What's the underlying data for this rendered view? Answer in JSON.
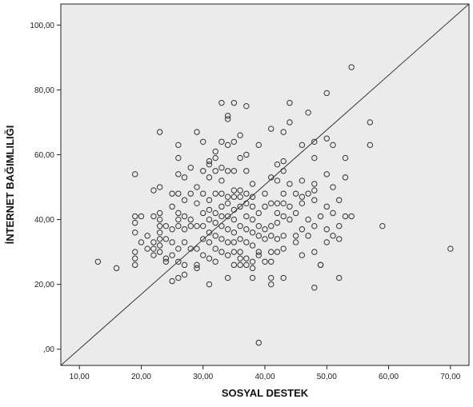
{
  "chart_data": {
    "type": "scatter",
    "xlabel": "SOSYAL DESTEK",
    "ylabel": "İNTERNET BAĞIMLILIĞI",
    "xlim": [
      7,
      73
    ],
    "ylim": [
      -5,
      106.5
    ],
    "x_ticks": [
      10,
      20,
      30,
      40,
      50,
      60,
      70
    ],
    "x_tick_labels": [
      "10,00",
      "20,00",
      "30,00",
      "40,00",
      "50,00",
      "60,00",
      "70,00"
    ],
    "y_ticks": [
      0,
      20,
      40,
      60,
      80,
      100
    ],
    "y_tick_labels": [
      ",00",
      "20,00",
      "40,00",
      "60,00",
      "80,00",
      "100,00"
    ],
    "reference_line": {
      "from": [
        7,
        -5
      ],
      "to": [
        73,
        106.5
      ]
    },
    "grid": false,
    "plot_background": "#ebebeb",
    "marker_color": "#333333",
    "line_color": "#333333",
    "points": [
      [
        13,
        27
      ],
      [
        16,
        25
      ],
      [
        19,
        54
      ],
      [
        19,
        41
      ],
      [
        19,
        39
      ],
      [
        19,
        36
      ],
      [
        19,
        30
      ],
      [
        19,
        28
      ],
      [
        19,
        26
      ],
      [
        20,
        41
      ],
      [
        20,
        33
      ],
      [
        21,
        35
      ],
      [
        21,
        31
      ],
      [
        22,
        49
      ],
      [
        22,
        41
      ],
      [
        22,
        33
      ],
      [
        22,
        31
      ],
      [
        22,
        29
      ],
      [
        23,
        67
      ],
      [
        23,
        50
      ],
      [
        23,
        42
      ],
      [
        23,
        40
      ],
      [
        23,
        38
      ],
      [
        23,
        36
      ],
      [
        23,
        34
      ],
      [
        23,
        32
      ],
      [
        23,
        30
      ],
      [
        24,
        38
      ],
      [
        24,
        34
      ],
      [
        24,
        28
      ],
      [
        24,
        27
      ],
      [
        25,
        48
      ],
      [
        25,
        44
      ],
      [
        25,
        37
      ],
      [
        25,
        33
      ],
      [
        25,
        29
      ],
      [
        25,
        21
      ],
      [
        26,
        63
      ],
      [
        26,
        59
      ],
      [
        26,
        54
      ],
      [
        26,
        48
      ],
      [
        26,
        42
      ],
      [
        26,
        40
      ],
      [
        26,
        38
      ],
      [
        26,
        31
      ],
      [
        26,
        27
      ],
      [
        26,
        22
      ],
      [
        27,
        53
      ],
      [
        27,
        46
      ],
      [
        27,
        41
      ],
      [
        27,
        37
      ],
      [
        27,
        33
      ],
      [
        27,
        26
      ],
      [
        27,
        23
      ],
      [
        28,
        56
      ],
      [
        28,
        48
      ],
      [
        28,
        40
      ],
      [
        28,
        38
      ],
      [
        28,
        31
      ],
      [
        29,
        67
      ],
      [
        29,
        50
      ],
      [
        29,
        45
      ],
      [
        29,
        38
      ],
      [
        29,
        31
      ],
      [
        29,
        26
      ],
      [
        29,
        25
      ],
      [
        30,
        64
      ],
      [
        30,
        55
      ],
      [
        30,
        48
      ],
      [
        30,
        42
      ],
      [
        30,
        38
      ],
      [
        30,
        34
      ],
      [
        30,
        29
      ],
      [
        31,
        58
      ],
      [
        31,
        57
      ],
      [
        31,
        53
      ],
      [
        31,
        46
      ],
      [
        31,
        43
      ],
      [
        31,
        40
      ],
      [
        31,
        36
      ],
      [
        31,
        33
      ],
      [
        31,
        28
      ],
      [
        31,
        20
      ],
      [
        32,
        61
      ],
      [
        32,
        59
      ],
      [
        32,
        55
      ],
      [
        32,
        48
      ],
      [
        32,
        42
      ],
      [
        32,
        39
      ],
      [
        32,
        35
      ],
      [
        32,
        31
      ],
      [
        32,
        27
      ],
      [
        33,
        76
      ],
      [
        33,
        64
      ],
      [
        33,
        56
      ],
      [
        33,
        52
      ],
      [
        33,
        48
      ],
      [
        33,
        44
      ],
      [
        33,
        41
      ],
      [
        33,
        38
      ],
      [
        33,
        34
      ],
      [
        33,
        30
      ],
      [
        34,
        72
      ],
      [
        34,
        71
      ],
      [
        34,
        63
      ],
      [
        34,
        55
      ],
      [
        34,
        47
      ],
      [
        34,
        45
      ],
      [
        34,
        41
      ],
      [
        34,
        37
      ],
      [
        34,
        33
      ],
      [
        34,
        29
      ],
      [
        34,
        22
      ],
      [
        35,
        76
      ],
      [
        35,
        64
      ],
      [
        35,
        55
      ],
      [
        35,
        49
      ],
      [
        35,
        47
      ],
      [
        35,
        43
      ],
      [
        35,
        40
      ],
      [
        35,
        36
      ],
      [
        35,
        33
      ],
      [
        35,
        30
      ],
      [
        35,
        26
      ],
      [
        36,
        66
      ],
      [
        36,
        59
      ],
      [
        36,
        49
      ],
      [
        36,
        47
      ],
      [
        36,
        44
      ],
      [
        36,
        38
      ],
      [
        36,
        34
      ],
      [
        36,
        30
      ],
      [
        36,
        28
      ],
      [
        36,
        26
      ],
      [
        37,
        75
      ],
      [
        37,
        60
      ],
      [
        37,
        55
      ],
      [
        37,
        48
      ],
      [
        37,
        45
      ],
      [
        37,
        41
      ],
      [
        37,
        37
      ],
      [
        37,
        33
      ],
      [
        37,
        28
      ],
      [
        37,
        26
      ],
      [
        38,
        51
      ],
      [
        38,
        47
      ],
      [
        38,
        44
      ],
      [
        38,
        40
      ],
      [
        38,
        36
      ],
      [
        38,
        32
      ],
      [
        38,
        27
      ],
      [
        38,
        25
      ],
      [
        38,
        22
      ],
      [
        39,
        63
      ],
      [
        39,
        42
      ],
      [
        39,
        38
      ],
      [
        39,
        35
      ],
      [
        39,
        30
      ],
      [
        39,
        29
      ],
      [
        39,
        2
      ],
      [
        40,
        48
      ],
      [
        40,
        44
      ],
      [
        40,
        37
      ],
      [
        40,
        34
      ],
      [
        40,
        27
      ],
      [
        41,
        68
      ],
      [
        41,
        53
      ],
      [
        41,
        45
      ],
      [
        41,
        38
      ],
      [
        41,
        35
      ],
      [
        41,
        30
      ],
      [
        41,
        27
      ],
      [
        41,
        22
      ],
      [
        41,
        20
      ],
      [
        42,
        57
      ],
      [
        42,
        52
      ],
      [
        42,
        45
      ],
      [
        42,
        42
      ],
      [
        42,
        39
      ],
      [
        42,
        34
      ],
      [
        42,
        30
      ],
      [
        43,
        67
      ],
      [
        43,
        58
      ],
      [
        43,
        55
      ],
      [
        43,
        48
      ],
      [
        43,
        45
      ],
      [
        43,
        41
      ],
      [
        43,
        35
      ],
      [
        43,
        31
      ],
      [
        43,
        22
      ],
      [
        44,
        76
      ],
      [
        44,
        70
      ],
      [
        44,
        51
      ],
      [
        44,
        44
      ],
      [
        44,
        40
      ],
      [
        45,
        48
      ],
      [
        45,
        42
      ],
      [
        45,
        35
      ],
      [
        45,
        33
      ],
      [
        46,
        63
      ],
      [
        46,
        52
      ],
      [
        46,
        47
      ],
      [
        46,
        45
      ],
      [
        46,
        37
      ],
      [
        46,
        29
      ],
      [
        47,
        73
      ],
      [
        47,
        48
      ],
      [
        47,
        40
      ],
      [
        47,
        35
      ],
      [
        48,
        64
      ],
      [
        48,
        59
      ],
      [
        48,
        51
      ],
      [
        48,
        49
      ],
      [
        48,
        46
      ],
      [
        48,
        38
      ],
      [
        48,
        30
      ],
      [
        48,
        19
      ],
      [
        49,
        26
      ],
      [
        49,
        41
      ],
      [
        49,
        26
      ],
      [
        50,
        79
      ],
      [
        50,
        65
      ],
      [
        50,
        54
      ],
      [
        50,
        44
      ],
      [
        50,
        37
      ],
      [
        50,
        33
      ],
      [
        51,
        63
      ],
      [
        51,
        50
      ],
      [
        51,
        42
      ],
      [
        51,
        35
      ],
      [
        52,
        46
      ],
      [
        52,
        38
      ],
      [
        52,
        34
      ],
      [
        52,
        22
      ],
      [
        53,
        59
      ],
      [
        53,
        53
      ],
      [
        53,
        41
      ],
      [
        54,
        87
      ],
      [
        54,
        41
      ],
      [
        57,
        70
      ],
      [
        57,
        63
      ],
      [
        59,
        38
      ],
      [
        70,
        31
      ]
    ]
  }
}
